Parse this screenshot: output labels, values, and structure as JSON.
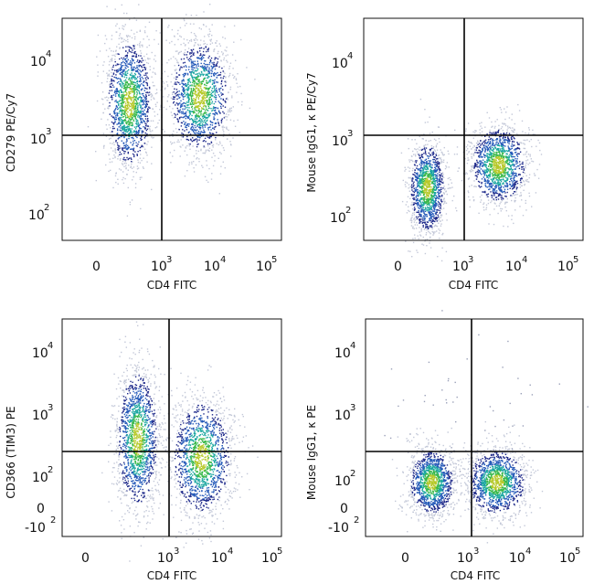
{
  "chart_data": [
    {
      "type": "scatter",
      "xlabel": "CD4 FITC",
      "ylabel": "CD279 PE/Cy7",
      "x_ticks": [
        {
          "base": "0",
          "exp": ""
        },
        {
          "base": "10",
          "exp": "3"
        },
        {
          "base": "10",
          "exp": "4"
        },
        {
          "base": "10",
          "exp": "5"
        }
      ],
      "y_ticks": [
        {
          "base": "10",
          "exp": "2"
        },
        {
          "base": "10",
          "exp": "3"
        },
        {
          "base": "10",
          "exp": "4"
        }
      ],
      "y_scale": "log",
      "quadrant_gate": {
        "x": 1000,
        "y": 1000
      },
      "populations": [
        {
          "x_center": 250,
          "y_center": 2000,
          "description": "CD4-negative cluster, broad CD279 spread"
        },
        {
          "x_center": 4000,
          "y_center": 2500,
          "description": "CD4-positive cluster, broad CD279 spread"
        }
      ]
    },
    {
      "type": "scatter",
      "xlabel": "CD4 FITC",
      "ylabel": "Mouse IgG1, κ PE/Cy7",
      "x_ticks": [
        {
          "base": "0",
          "exp": ""
        },
        {
          "base": "10",
          "exp": "3"
        },
        {
          "base": "10",
          "exp": "4"
        },
        {
          "base": "10",
          "exp": "5"
        }
      ],
      "y_ticks": [
        {
          "base": "10",
          "exp": "2"
        },
        {
          "base": "10",
          "exp": "3"
        },
        {
          "base": "10",
          "exp": "4"
        }
      ],
      "y_scale": "log",
      "quadrant_gate": {
        "x": 1000,
        "y": 1000
      },
      "populations": [
        {
          "x_center": 250,
          "y_center": 300,
          "description": "CD4-negative cluster, isotype below gate"
        },
        {
          "x_center": 4000,
          "y_center": 400,
          "description": "CD4-positive cluster, isotype below gate"
        }
      ]
    },
    {
      "type": "scatter",
      "xlabel": "CD4 FITC",
      "ylabel": "CD366 (TIM3) PE",
      "x_ticks": [
        {
          "base": "0",
          "exp": ""
        },
        {
          "base": "10",
          "exp": "3"
        },
        {
          "base": "10",
          "exp": "4"
        },
        {
          "base": "10",
          "exp": "5"
        }
      ],
      "y_ticks": [
        {
          "base": "-10",
          "exp": "2"
        },
        {
          "base": "0",
          "exp": ""
        },
        {
          "base": "10",
          "exp": "2"
        },
        {
          "base": "10",
          "exp": "3"
        },
        {
          "base": "10",
          "exp": "4"
        }
      ],
      "y_scale": "biexponential",
      "quadrant_gate": {
        "x": 1000,
        "y": 250
      },
      "populations": [
        {
          "x_center": 300,
          "y_center": 300,
          "description": "CD4-negative cluster extending up to ~10^3"
        },
        {
          "x_center": 4000,
          "y_center": 150,
          "description": "CD4-positive cluster centred near gate"
        }
      ]
    },
    {
      "type": "scatter",
      "xlabel": "CD4 FITC",
      "ylabel": "Mouse IgG1, κ PE",
      "x_ticks": [
        {
          "base": "0",
          "exp": ""
        },
        {
          "base": "10",
          "exp": "3"
        },
        {
          "base": "10",
          "exp": "4"
        },
        {
          "base": "10",
          "exp": "5"
        }
      ],
      "y_ticks": [
        {
          "base": "-10",
          "exp": "2"
        },
        {
          "base": "0",
          "exp": ""
        },
        {
          "base": "10",
          "exp": "2"
        },
        {
          "base": "10",
          "exp": "3"
        },
        {
          "base": "10",
          "exp": "4"
        }
      ],
      "y_scale": "biexponential",
      "quadrant_gate": {
        "x": 1000,
        "y": 250
      },
      "populations": [
        {
          "x_center": 300,
          "y_center": 70,
          "description": "CD4-negative cluster, isotype below gate"
        },
        {
          "x_center": 4000,
          "y_center": 70,
          "description": "CD4-positive cluster, isotype below gate"
        }
      ]
    }
  ]
}
